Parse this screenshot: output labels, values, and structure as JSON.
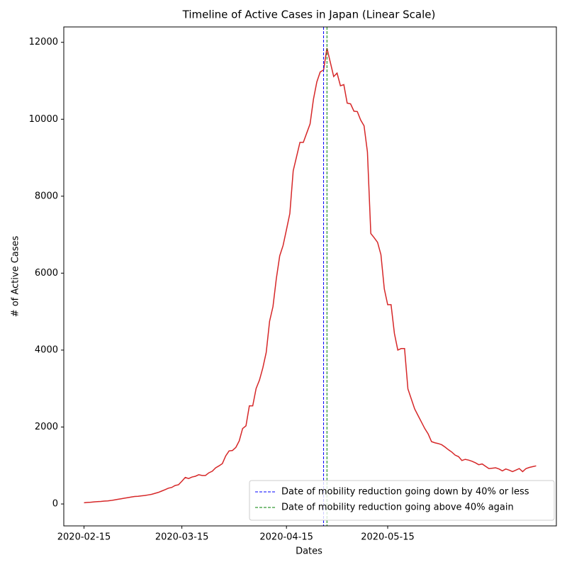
{
  "chart_data": {
    "type": "line",
    "title": "Timeline of Active Cases in Japan (Linear Scale)",
    "xlabel": "Dates",
    "ylabel": "# of Active Cases",
    "x": [
      "2020-02-15",
      "2020-02-16",
      "2020-02-17",
      "2020-02-18",
      "2020-02-19",
      "2020-02-20",
      "2020-02-21",
      "2020-02-22",
      "2020-02-23",
      "2020-02-24",
      "2020-02-25",
      "2020-02-26",
      "2020-02-27",
      "2020-02-28",
      "2020-02-29",
      "2020-03-01",
      "2020-03-02",
      "2020-03-03",
      "2020-03-04",
      "2020-03-05",
      "2020-03-06",
      "2020-03-07",
      "2020-03-08",
      "2020-03-09",
      "2020-03-10",
      "2020-03-11",
      "2020-03-12",
      "2020-03-13",
      "2020-03-14",
      "2020-03-15",
      "2020-03-16",
      "2020-03-17",
      "2020-03-18",
      "2020-03-19",
      "2020-03-20",
      "2020-03-21",
      "2020-03-22",
      "2020-03-23",
      "2020-03-24",
      "2020-03-25",
      "2020-03-26",
      "2020-03-27",
      "2020-03-28",
      "2020-03-29",
      "2020-03-30",
      "2020-03-31",
      "2020-04-01",
      "2020-04-02",
      "2020-04-03",
      "2020-04-04",
      "2020-04-05",
      "2020-04-06",
      "2020-04-07",
      "2020-04-08",
      "2020-04-09",
      "2020-04-10",
      "2020-04-11",
      "2020-04-12",
      "2020-04-13",
      "2020-04-14",
      "2020-04-15",
      "2020-04-16",
      "2020-04-17",
      "2020-04-18",
      "2020-04-19",
      "2020-04-20",
      "2020-04-21",
      "2020-04-22",
      "2020-04-23",
      "2020-04-24",
      "2020-04-25",
      "2020-04-26",
      "2020-04-27",
      "2020-04-28",
      "2020-04-29",
      "2020-04-30",
      "2020-05-01",
      "2020-05-02",
      "2020-05-03",
      "2020-05-04",
      "2020-05-05",
      "2020-05-06",
      "2020-05-07",
      "2020-05-08",
      "2020-05-09",
      "2020-05-10",
      "2020-05-11",
      "2020-05-12",
      "2020-05-13",
      "2020-05-14",
      "2020-05-15",
      "2020-05-16",
      "2020-05-17",
      "2020-05-18",
      "2020-05-19",
      "2020-05-20",
      "2020-05-21",
      "2020-05-22",
      "2020-05-23",
      "2020-05-24",
      "2020-05-25",
      "2020-05-26",
      "2020-05-27",
      "2020-05-28",
      "2020-05-29",
      "2020-05-30",
      "2020-05-31",
      "2020-06-01",
      "2020-06-02",
      "2020-06-03",
      "2020-06-04",
      "2020-06-05",
      "2020-06-06",
      "2020-06-07",
      "2020-06-08",
      "2020-06-09",
      "2020-06-10",
      "2020-06-11",
      "2020-06-12",
      "2020-06-13",
      "2020-06-14",
      "2020-06-15",
      "2020-06-16",
      "2020-06-17",
      "2020-06-18",
      "2020-06-19",
      "2020-06-20",
      "2020-06-21",
      "2020-06-22",
      "2020-06-23",
      "2020-06-24",
      "2020-06-25",
      "2020-06-26",
      "2020-06-27",
      "2020-06-28"
    ],
    "series": [
      {
        "name": "Active Cases",
        "color": "#d62728",
        "values": [
          30,
          40,
          45,
          55,
          60,
          65,
          75,
          80,
          90,
          105,
          120,
          135,
          150,
          165,
          180,
          195,
          200,
          210,
          220,
          235,
          250,
          275,
          300,
          335,
          370,
          410,
          430,
          480,
          500,
          590,
          690,
          660,
          700,
          720,
          760,
          740,
          740,
          810,
          850,
          940,
          990,
          1050,
          1250,
          1380,
          1390,
          1470,
          1640,
          1960,
          2030,
          2550,
          2550,
          3000,
          3220,
          3540,
          3940,
          4750,
          5130,
          5860,
          6450,
          6720,
          7130,
          7550,
          8660,
          9030,
          9400,
          9400,
          9640,
          9880,
          10520,
          10970,
          11230,
          11280,
          11850,
          11480,
          11110,
          11200,
          10870,
          10900,
          10420,
          10400,
          10210,
          10200,
          9980,
          9830,
          9150,
          7030,
          6920,
          6800,
          6480,
          5590,
          5180,
          5180,
          4430,
          4000,
          4040,
          4040,
          2990,
          2730,
          2470,
          2300,
          2130,
          1960,
          1820,
          1620,
          1590,
          1570,
          1540,
          1480,
          1410,
          1350,
          1270,
          1230,
          1130,
          1160,
          1140,
          1110,
          1070,
          1020,
          1040,
          980,
          920,
          930,
          940,
          910,
          860,
          910,
          880,
          840,
          880,
          920,
          840,
          920,
          950,
          970,
          990
        ]
      }
    ],
    "vlines": [
      {
        "name": "Date of mobility reduction going down by 40% or less",
        "color": "#0000ff",
        "x": "2020-04-26"
      },
      {
        "name": "Date of mobility reduction going above 40% again",
        "color": "#008000",
        "x": "2020-04-27"
      }
    ],
    "xlim": [
      "2020-02-09",
      "2020-07-04"
    ],
    "xticks": [
      "2020-02-15",
      "2020-03-15",
      "2020-04-15",
      "2020-05-15"
    ],
    "ylim": [
      -570,
      12400
    ],
    "yticks": [
      0,
      2000,
      4000,
      6000,
      8000,
      10000,
      12000
    ],
    "legend": "lower right"
  }
}
